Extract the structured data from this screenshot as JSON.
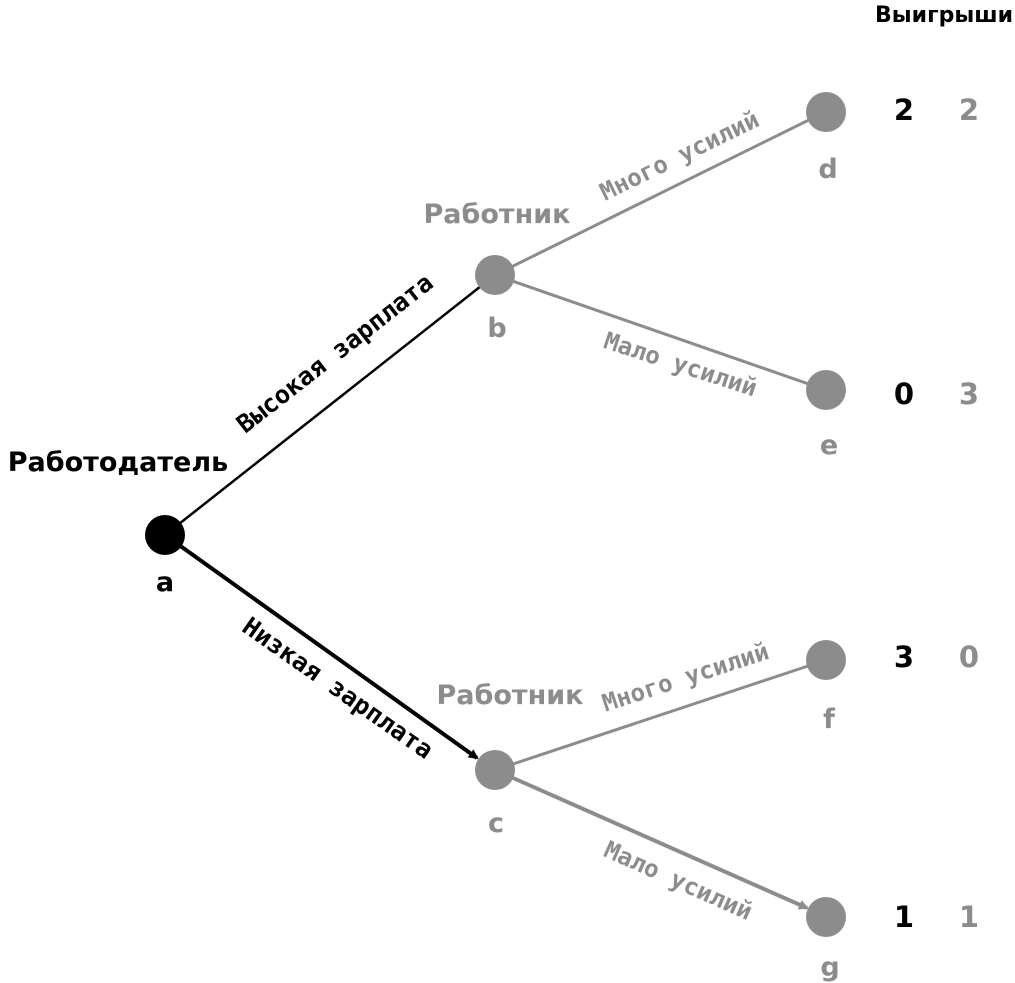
{
  "colors": {
    "player1": "#000000",
    "player2": "#8c8c8c"
  },
  "header": {
    "payoffs_title": "Выигрыши"
  },
  "players": {
    "employer": "Работодатель",
    "worker_top": "Работник",
    "worker_bottom": "Работник"
  },
  "nodes": {
    "a": "a",
    "b": "b",
    "c": "c",
    "d": "d",
    "e": "e",
    "f": "f",
    "g": "g"
  },
  "moves": {
    "high_wage": "Высокая зарплата",
    "low_wage": "Низкая зарплата",
    "b_much_effort": "Много усилий",
    "b_little_effort": "Мало усилий",
    "c_much_effort": "Много усилий",
    "c_little_effort": "Мало усилий"
  },
  "payoffs": {
    "d": {
      "p1": "2",
      "p2": "2"
    },
    "e": {
      "p1": "0",
      "p2": "3"
    },
    "f": {
      "p1": "3",
      "p2": "0"
    },
    "g": {
      "p1": "1",
      "p2": "1"
    }
  }
}
